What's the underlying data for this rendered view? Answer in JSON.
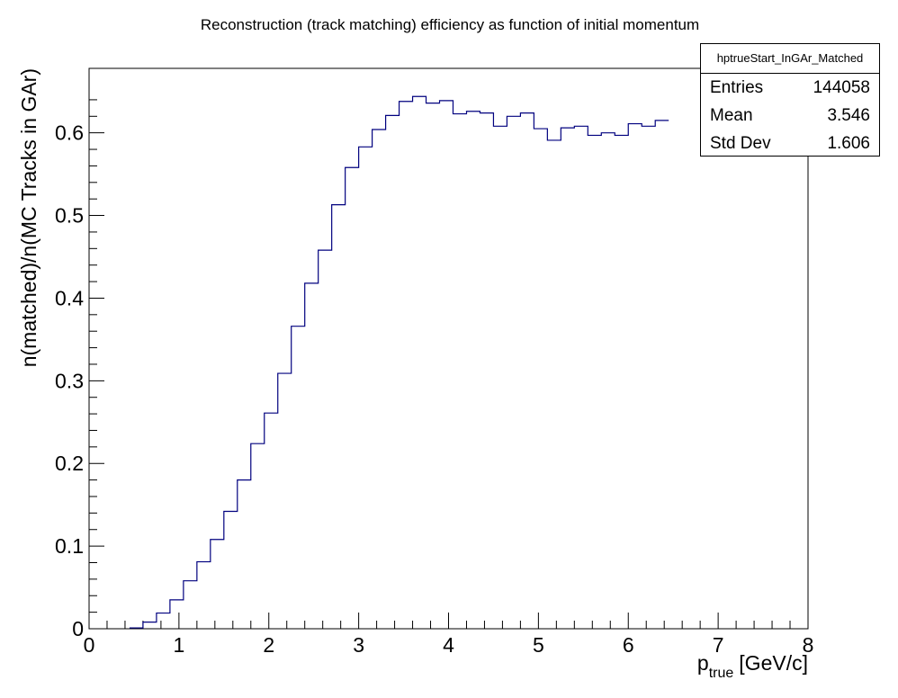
{
  "chart_data": {
    "type": "step",
    "title": "Reconstruction (track matching) efficiency as function of initial momentum",
    "xlabel": "p",
    "xlabel_sub": "true",
    "xlabel_unit": "[GeV/c]",
    "ylabel": "n(matched)/n(MC Tracks in GAr)",
    "xlim": [
      0,
      8
    ],
    "ylim": [
      0,
      0.678
    ],
    "x_ticks": [
      "0",
      "1",
      "2",
      "3",
      "4",
      "5",
      "6",
      "7",
      "8"
    ],
    "y_ticks": [
      "0",
      "0.1",
      "0.2",
      "0.3",
      "0.4",
      "0.5",
      "0.6"
    ],
    "bin_width": 0.15,
    "bin_start": 0.45,
    "series": [
      {
        "name": "",
        "color": "#00007f",
        "values": [
          0.001,
          0.008,
          0.019,
          0.035,
          0.058,
          0.081,
          0.108,
          0.142,
          0.18,
          0.224,
          0.261,
          0.309,
          0.366,
          0.418,
          0.458,
          0.513,
          0.558,
          0.583,
          0.604,
          0.621,
          0.638,
          0.644,
          0.636,
          0.639,
          0.623,
          0.626,
          0.624,
          0.608,
          0.62,
          0.624,
          0.605,
          0.591,
          0.606,
          0.608,
          0.597,
          0.6,
          0.597,
          0.611,
          0.608,
          0.615
        ]
      }
    ],
    "grid": false
  },
  "stats": {
    "title": "hptrueStart_InGAr_Matched",
    "rows": [
      {
        "label": "Entries",
        "value": "144058"
      },
      {
        "label": "Mean",
        "value": "3.546"
      },
      {
        "label": "Std Dev",
        "value": "1.606"
      }
    ]
  }
}
